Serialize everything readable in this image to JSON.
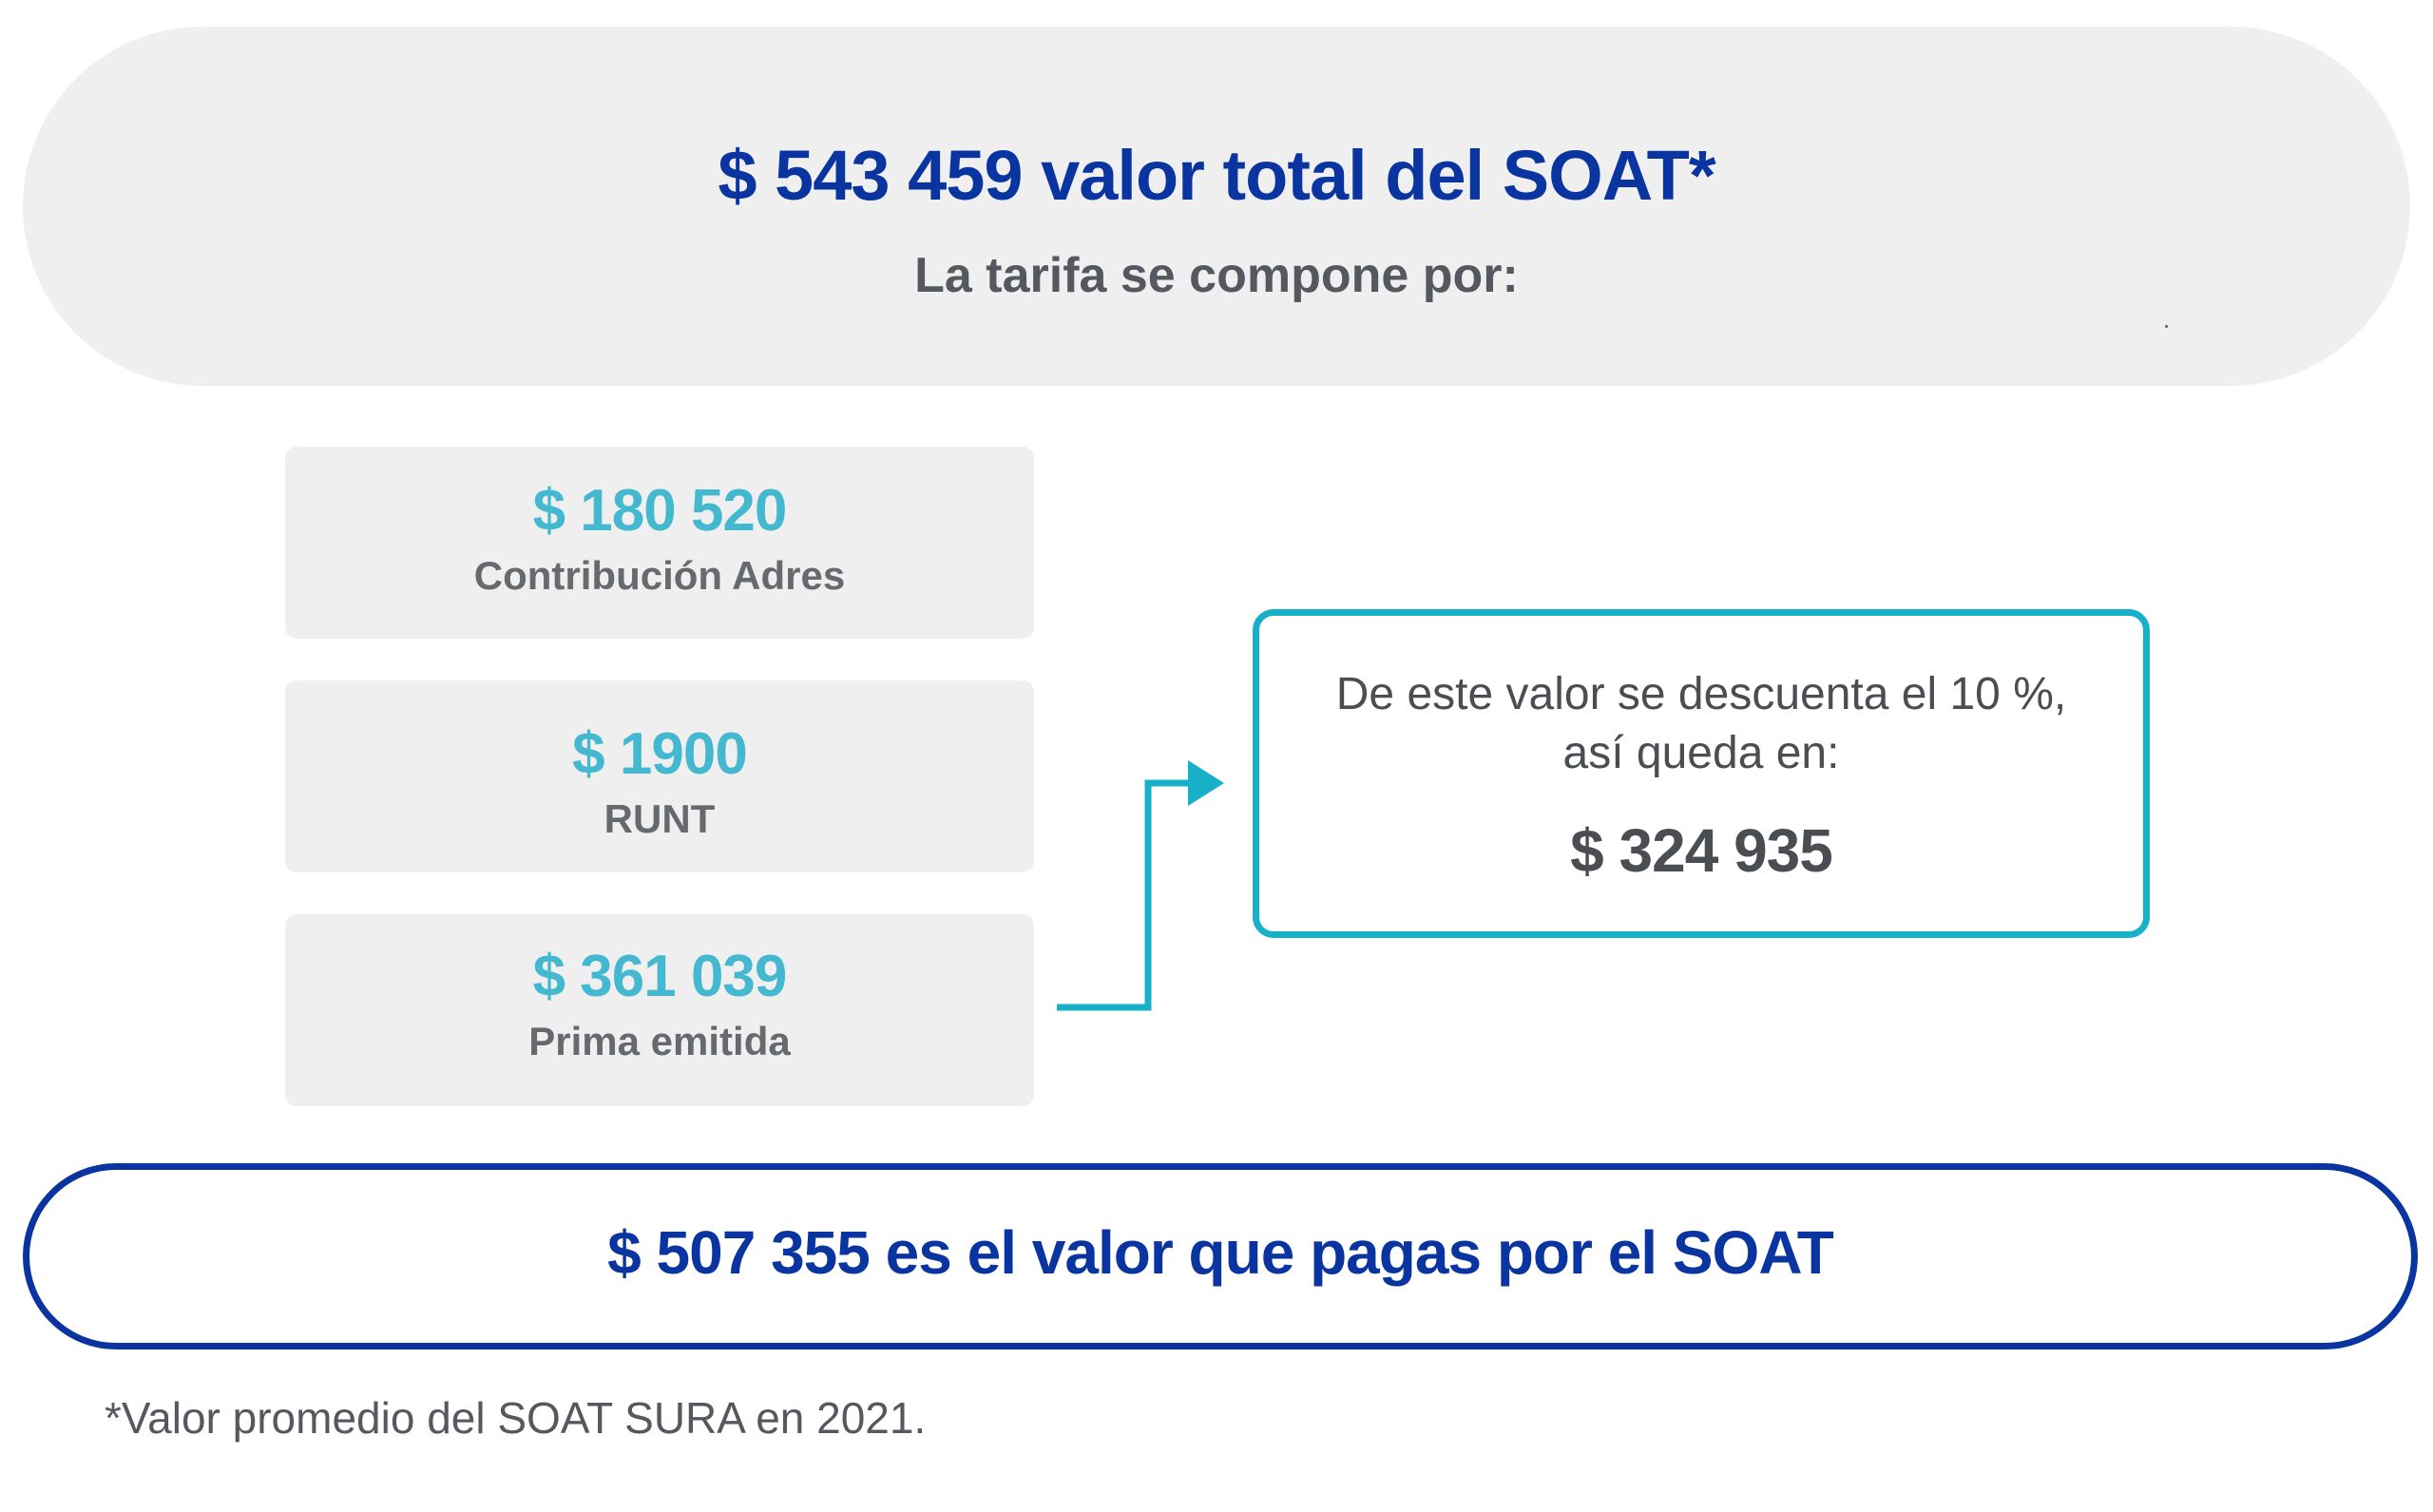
{
  "header": {
    "total": "$ 543 459 valor total del SOAT*",
    "subtitle": "La tarifa se compone por:"
  },
  "components": [
    {
      "amount": "$ 180 520",
      "label": "Contribución Adres"
    },
    {
      "amount": "$ 1900",
      "label": "RUNT"
    },
    {
      "amount": "$ 361 039",
      "label": "Prima emitida"
    }
  ],
  "discount": {
    "line1": "De este valor se descuenta el 10 %,",
    "line2": "así queda en:",
    "amount": "$ 324 935"
  },
  "payment": {
    "text": "$ 507 355 es el valor que pagas por el SOAT"
  },
  "footnote": "*Valor promedio del SOAT SURA en 2021.",
  "colors": {
    "primary_blue": "#0a34a0",
    "teal": "#17b0c8",
    "amount_teal": "#44b8cf",
    "gray_text": "#55595f",
    "panel_gray": "#efeff0"
  }
}
